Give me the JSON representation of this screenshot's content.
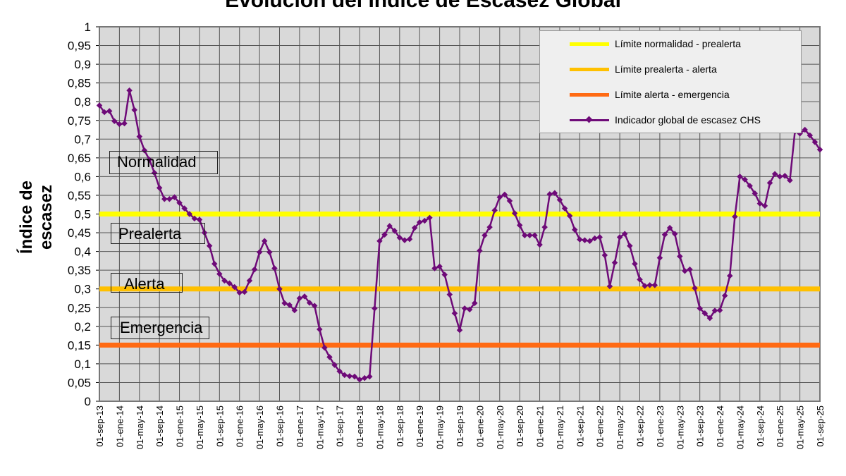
{
  "chart_data": {
    "type": "line",
    "title": "Evolución del Índice de Escasez Global",
    "ylabel": "Índice de escasez",
    "xlabel": "",
    "ylim": [
      0,
      1
    ],
    "y_ticks": [
      "0",
      "0,05",
      "0,1",
      "0,15",
      "0,2",
      "0,25",
      "0,3",
      "0,35",
      "0,4",
      "0,45",
      "0,5",
      "0,55",
      "0,6",
      "0,65",
      "0,7",
      "0,75",
      "0,8",
      "0,85",
      "0,9",
      "0,95",
      "1"
    ],
    "x_tick_labels": [
      "01-sep-13",
      "01-ene-14",
      "01-may-14",
      "01-sep-14",
      "01-ene-15",
      "01-may-15",
      "01-sep-15",
      "01-ene-16",
      "01-may-16",
      "01-sep-16",
      "01-ene-17",
      "01-may-17",
      "01-sep-17",
      "01-ene-18",
      "01-may-18",
      "01-sep-18",
      "01-ene-19",
      "01-may-19",
      "01-sep-19",
      "01-ene-20",
      "01-may-20",
      "01-sep-20",
      "01-ene-21",
      "01-may-21",
      "01-sep-21",
      "01-ene-22",
      "01-may-22",
      "01-sep-22",
      "01-ene-23",
      "01-may-23",
      "01-sep-23",
      "01-ene-24",
      "01-may-24",
      "01-sep-24",
      "01-ene-25",
      "01-may-25",
      "01-sep-25"
    ],
    "grid": true,
    "legend_position": "top-right",
    "thresholds": [
      {
        "name": "Límite normalidad - prealerta",
        "value": 0.5,
        "color": "#ffff00"
      },
      {
        "name": "Límite prealerta - alerta",
        "value": 0.3,
        "color": "#ffc000"
      },
      {
        "name": "Límite alerta - emergencia",
        "value": 0.15,
        "color": "#ff6a13"
      }
    ],
    "zones": [
      {
        "label": "Normalidad",
        "color": "#66a80f"
      },
      {
        "label": "Prealerta",
        "color": "#ffff00"
      },
      {
        "label": "Alerta",
        "color": "#ffc000"
      },
      {
        "label": "Emergencia",
        "color": "#ff0000"
      }
    ],
    "series": [
      {
        "name": "Indicador global de escasez CHS",
        "color": "#6e0a78",
        "start": "01-sep-13",
        "frequency": "monthly",
        "values": [
          0.79,
          0.772,
          0.775,
          0.748,
          0.74,
          0.742,
          0.83,
          0.778,
          0.707,
          0.67,
          0.645,
          0.61,
          0.57,
          0.54,
          0.54,
          0.545,
          0.53,
          0.515,
          0.5,
          0.488,
          0.485,
          0.45,
          0.415,
          0.367,
          0.34,
          0.322,
          0.315,
          0.305,
          0.29,
          0.292,
          0.322,
          0.352,
          0.398,
          0.428,
          0.398,
          0.355,
          0.3,
          0.262,
          0.257,
          0.243,
          0.275,
          0.28,
          0.263,
          0.255,
          0.192,
          0.143,
          0.118,
          0.097,
          0.08,
          0.07,
          0.067,
          0.066,
          0.058,
          0.062,
          0.066,
          0.248,
          0.428,
          0.445,
          0.468,
          0.455,
          0.437,
          0.43,
          0.433,
          0.463,
          0.478,
          0.482,
          0.49,
          0.355,
          0.36,
          0.338,
          0.285,
          0.235,
          0.19,
          0.248,
          0.245,
          0.262,
          0.402,
          0.443,
          0.465,
          0.51,
          0.545,
          0.552,
          0.535,
          0.502,
          0.47,
          0.443,
          0.443,
          0.443,
          0.418,
          0.465,
          0.553,
          0.556,
          0.538,
          0.515,
          0.495,
          0.458,
          0.432,
          0.43,
          0.428,
          0.435,
          0.438,
          0.39,
          0.307,
          0.37,
          0.438,
          0.447,
          0.415,
          0.367,
          0.325,
          0.308,
          0.31,
          0.31,
          0.383,
          0.445,
          0.463,
          0.447,
          0.387,
          0.348,
          0.352,
          0.302,
          0.248,
          0.235,
          0.222,
          0.242,
          0.243,
          0.282,
          0.335,
          0.493,
          0.6,
          0.592,
          0.575,
          0.555,
          0.528,
          0.522,
          0.583,
          0.607,
          0.6,
          0.602,
          0.59,
          0.72,
          0.715,
          0.725,
          0.71,
          0.692,
          0.672
        ]
      }
    ]
  }
}
